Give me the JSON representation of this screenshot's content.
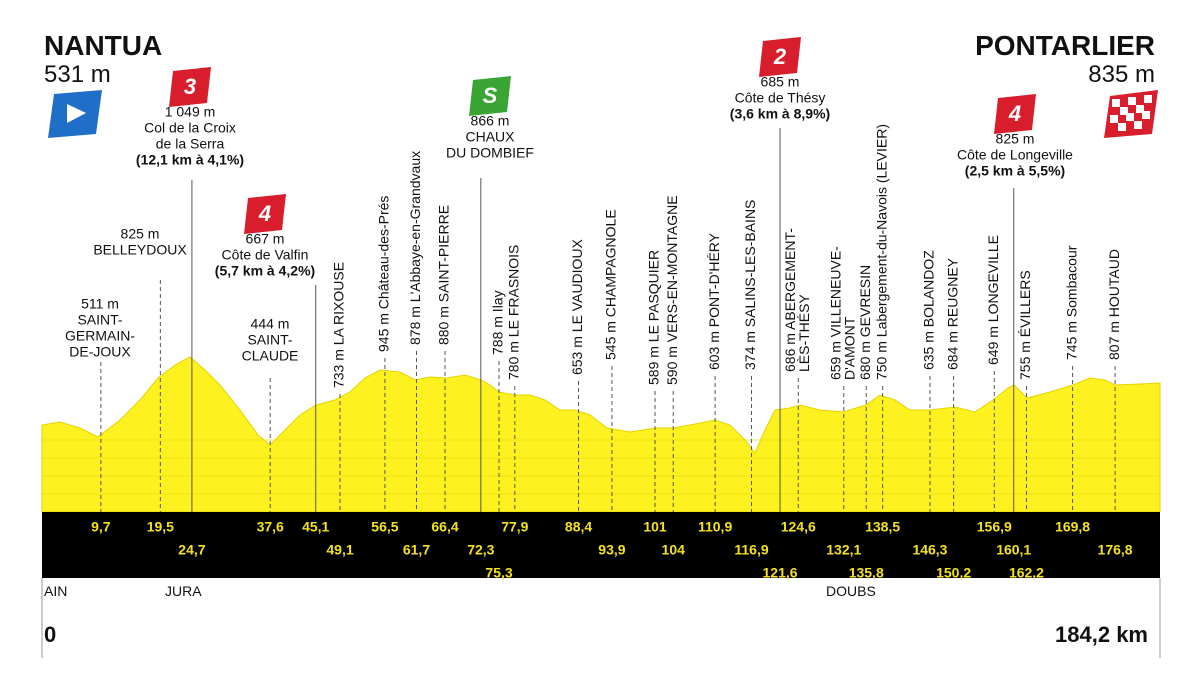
{
  "start": {
    "name": "NANTUA",
    "altitude": "531 m"
  },
  "finish": {
    "name": "PONTARLIER",
    "altitude": "835 m"
  },
  "waypoints": [
    {
      "km": "9,7",
      "lines": [
        "511 m",
        "SAINT-",
        "GERMAIN-",
        "DE-JOUX"
      ]
    },
    {
      "km": "19,5",
      "lines": [
        "825 m",
        "BELLEYDOUX"
      ]
    },
    {
      "km": "24,7",
      "category": "3",
      "lines": [
        "1 049 m",
        "Col de la Croix",
        "de la Serra"
      ],
      "detail": "(12,1 km à 4,1%)"
    },
    {
      "km": "37,6",
      "lines": [
        "444 m",
        "SAINT-",
        "CLAUDE"
      ]
    },
    {
      "km": "45,1",
      "category": "4",
      "lines": [
        "667 m",
        "Côte de Valfin"
      ],
      "detail": "(5,7 km à 4,2%)"
    },
    {
      "km": "49,1",
      "lines": [
        "733 m LA RIXOUSE"
      ]
    },
    {
      "km": "56,5",
      "lines": [
        "945 m Château-des-Prés"
      ]
    },
    {
      "km": "61,7",
      "lines": [
        "878 m L'Abbaye-en-Grandvaux"
      ]
    },
    {
      "km": "66,4",
      "lines": [
        "880 m SAINT-PIERRE"
      ]
    },
    {
      "km": "72,3",
      "category": "S",
      "lines": [
        "866 m",
        "CHAUX",
        "DU DOMBIEF"
      ]
    },
    {
      "km": "75,3",
      "lines": [
        "788 m Ilay"
      ]
    },
    {
      "km": "77,9",
      "lines": [
        "780 m LE FRASNOIS"
      ]
    },
    {
      "km": "88,4",
      "lines": [
        "653 m LE VAUDIOUX"
      ]
    },
    {
      "km": "93,9",
      "lines": [
        "545 m CHAMPAGNOLE"
      ]
    },
    {
      "km": "101",
      "lines": [
        "589 m LE PASQUIER"
      ]
    },
    {
      "km": "104",
      "lines": [
        "590 m VERS-EN-MONTAGNE"
      ]
    },
    {
      "km": "110,9",
      "lines": [
        "603 m PONT-D'HÉRY"
      ]
    },
    {
      "km": "116,9",
      "lines": [
        "374 m SALINS-LES-BAINS"
      ]
    },
    {
      "km": "121,6",
      "category": "2",
      "lines": [
        "685 m",
        "Côte de Thésy"
      ],
      "detail": "(3,6 km à 8,9%)"
    },
    {
      "km": "124,6",
      "lines": [
        "686 m ABERGEMENT-",
        "LÈS-THÉSY"
      ]
    },
    {
      "km": "132,1",
      "lines": [
        "659 m VILLENEUVE-",
        "D'AMONT"
      ]
    },
    {
      "km": "135,8",
      "lines": [
        "680 m GEVRESIN"
      ]
    },
    {
      "km": "138,5",
      "lines": [
        "750 m Labergement-du-Navois (LEVIER)"
      ]
    },
    {
      "km": "146,3",
      "lines": [
        "635 m BOLANDOZ"
      ]
    },
    {
      "km": "150,2",
      "lines": [
        "684 m REUGNEY"
      ]
    },
    {
      "km": "156,9",
      "lines": [
        "649 m LONGEVILLE"
      ]
    },
    {
      "km": "160,1",
      "category": "4",
      "lines": [
        "825 m",
        "Côte de Longeville"
      ],
      "detail": "(2,5 km à 5,5%)"
    },
    {
      "km": "162,2",
      "lines": [
        "755 m ÉVILLERS"
      ]
    },
    {
      "km": "169,8",
      "lines": [
        "745 m Sombacour"
      ]
    },
    {
      "km": "176,8",
      "lines": [
        "807 m HOUTAUD"
      ]
    }
  ],
  "regions": [
    "AIN",
    "JURA",
    "DOUBS"
  ],
  "distance": {
    "start": "0",
    "end": "184,2 km"
  }
}
